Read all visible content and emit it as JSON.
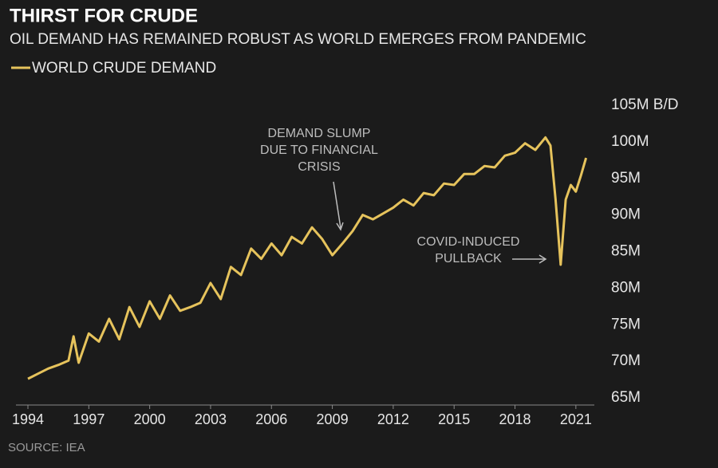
{
  "chart_data": {
    "type": "line",
    "title": "THIRST FOR CRUDE",
    "subtitle": "OIL DEMAND HAS REMAINED ROBUST AS WORLD EMERGES FROM PANDEMIC",
    "source": "SOURCE: IEA",
    "annotations": [
      {
        "lines": [
          "DEMAND SLUMP",
          "DUE TO FINANCIAL",
          "CRISIS"
        ]
      },
      {
        "lines": [
          "COVID-INDUCED",
          "PULLBACK"
        ]
      }
    ],
    "xlim": [
      1994,
      2022.5
    ],
    "xticks": [
      1994,
      1997,
      2000,
      2003,
      2006,
      2009,
      2012,
      2015,
      2018,
      2021
    ],
    "ylim": [
      65,
      105
    ],
    "yticks": [
      {
        "value": 65,
        "label": "65M"
      },
      {
        "value": 70,
        "label": "70M"
      },
      {
        "value": 75,
        "label": "75M"
      },
      {
        "value": 80,
        "label": "80M"
      },
      {
        "value": 85,
        "label": "85M"
      },
      {
        "value": 90,
        "label": "90M"
      },
      {
        "value": 95,
        "label": "95M"
      },
      {
        "value": 100,
        "label": "100M"
      },
      {
        "value": 105,
        "label": "105M B/D"
      }
    ],
    "series": [
      {
        "name": "WORLD CRUDE DEMAND",
        "color": "#e6c35c",
        "x": [
          1994,
          1994.5,
          1995,
          1995.5,
          1996,
          1996.25,
          1996.5,
          1997,
          1997.5,
          1998,
          1998.5,
          1999,
          1999.5,
          2000,
          2000.5,
          2001,
          2001.5,
          2002,
          2002.5,
          2003,
          2003.5,
          2004,
          2004.5,
          2005,
          2005.5,
          2006,
          2006.5,
          2007,
          2007.5,
          2008,
          2008.5,
          2009,
          2009.5,
          2010,
          2010.5,
          2011,
          2011.5,
          2012,
          2012.5,
          2013,
          2013.5,
          2014,
          2014.5,
          2015,
          2015.5,
          2016,
          2016.5,
          2017,
          2017.5,
          2018,
          2018.5,
          2019,
          2019.5,
          2019.75,
          2020,
          2020.25,
          2020.5,
          2020.75,
          2021,
          2021.25,
          2021.5
        ],
        "values": [
          67.6,
          68.3,
          69,
          69.5,
          70.1,
          73.4,
          69.8,
          73.8,
          72.7,
          75.8,
          73,
          77.4,
          74.7,
          78.2,
          75.8,
          79,
          76.9,
          77.4,
          78,
          80.7,
          78.5,
          82.9,
          81.8,
          85.4,
          84,
          86.1,
          84.5,
          87,
          86.1,
          88.3,
          86.7,
          84.5,
          86.1,
          87.8,
          90,
          89.4,
          90.2,
          91,
          92.1,
          91.3,
          93,
          92.7,
          94.3,
          94.1,
          95.6,
          95.6,
          96.7,
          96.5,
          98.1,
          98.5,
          99.8,
          98.9,
          100.6,
          99.5,
          92.1,
          83.2,
          92.1,
          94.1,
          93.2,
          95.4,
          97.8
        ]
      }
    ]
  }
}
